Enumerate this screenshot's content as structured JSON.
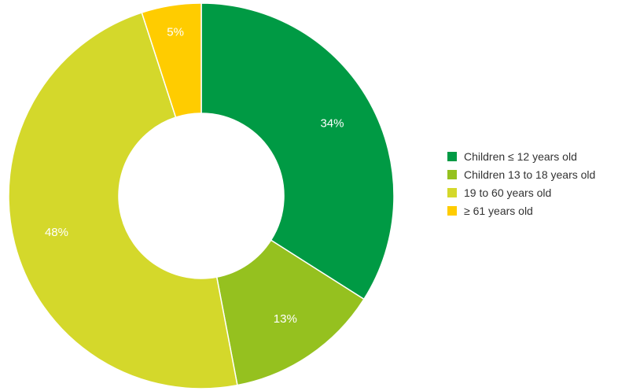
{
  "chart_data": {
    "type": "pie",
    "donut": true,
    "categories": [
      "Children ≤ 12 years old",
      "Children 13 to 18 years old",
      "19 to 60 years old",
      "≥ 61 years old"
    ],
    "values": [
      34,
      13,
      48,
      5
    ],
    "value_labels": [
      "34%",
      "13%",
      "48%",
      "5%"
    ],
    "colors": [
      "#009a44",
      "#95c11f",
      "#d4d82b",
      "#ffcc00"
    ],
    "legend_position": "right"
  }
}
